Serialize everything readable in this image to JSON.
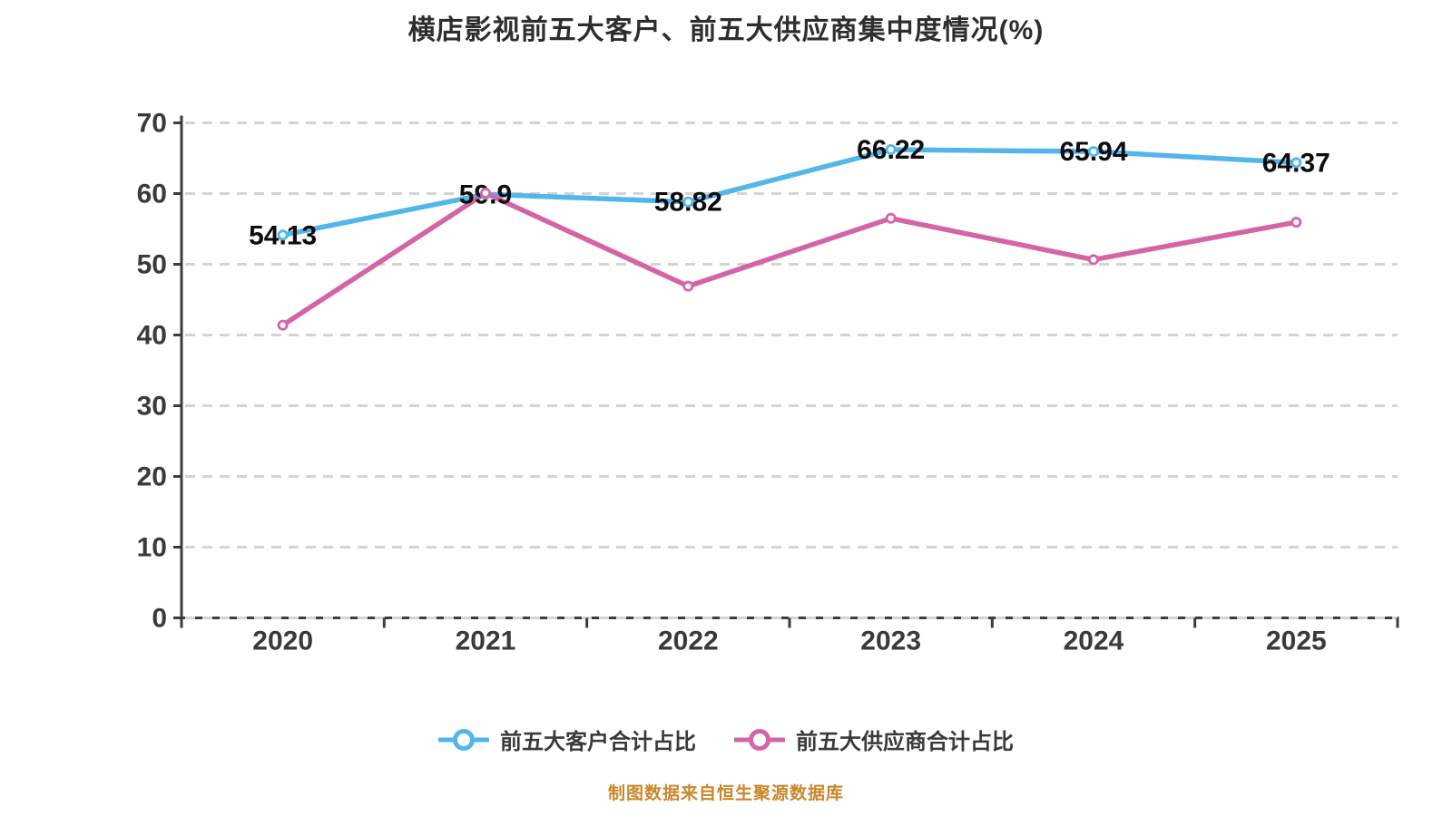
{
  "title": "横店影视前五大客户、前五大供应商集中度情况(%)",
  "footer": "制图数据来自恒生聚源数据库",
  "colors": {
    "customers_line": "#53b6ea",
    "suppliers_line": "#d564a7",
    "grid": "#d4d4d4",
    "axis": "#3d3d3d",
    "tick_label": "#3a3a3a",
    "value_label": "#0d0d0d",
    "marker_fill": "#ffffff",
    "title": "#2e2e2e",
    "legend_text": "#3a3a3a",
    "footer_text": "#c8872b",
    "background": "#ffffff"
  },
  "chart_data": {
    "type": "line",
    "title": "横店影视前五大客户、前五大供应商集中度情况(%)",
    "categories": [
      "2020",
      "2021",
      "2022",
      "2023",
      "2024",
      "2025"
    ],
    "series": [
      {
        "name": "前五大客户合计占比",
        "color_key": "customers_line",
        "values": [
          54.13,
          59.9,
          58.82,
          66.22,
          65.94,
          64.37
        ],
        "labels": [
          "54.13",
          "59.9",
          "58.82",
          "66.22",
          "65.94",
          "64.37"
        ],
        "show_labels": true
      },
      {
        "name": "前五大供应商合计占比",
        "color_key": "suppliers_line",
        "values": [
          41.4,
          60.07,
          46.9,
          56.5,
          50.65,
          55.95
        ],
        "labels": [],
        "show_labels": false
      }
    ],
    "xlabel": "",
    "ylabel": "",
    "ylim": [
      0,
      70
    ],
    "ytick_step": 10,
    "yticks": [
      "0",
      "10",
      "20",
      "30",
      "40",
      "50",
      "60",
      "70"
    ],
    "grid": "dashed-horizontal",
    "legend_position": "bottom"
  }
}
